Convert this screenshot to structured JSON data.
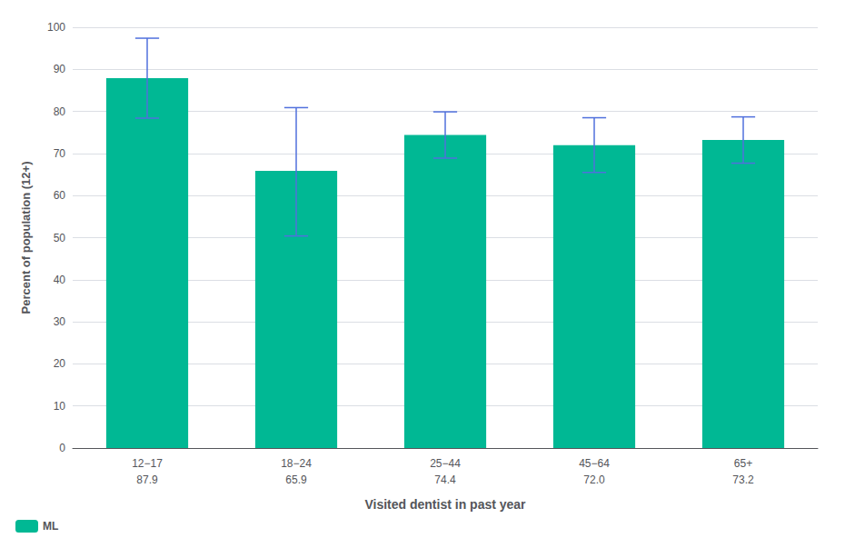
{
  "chart_data": {
    "type": "bar",
    "categories": [
      "12−17",
      "18−24",
      "25−44",
      "45−64",
      "65+"
    ],
    "series": [
      {
        "name": "ML",
        "color": "#00B894",
        "values": [
          87.9,
          65.9,
          74.4,
          72.0,
          73.2
        ],
        "value_labels": [
          "87.9",
          "65.9",
          "74.4",
          "72.0",
          "73.2"
        ],
        "error_lower": [
          9.5,
          15.5,
          5.5,
          6.5,
          5.5
        ],
        "error_upper": [
          9.5,
          15.0,
          5.5,
          6.5,
          5.5
        ]
      }
    ],
    "ylabel": "Percent of population (12+)",
    "xlabel": "Visited dentist in past year",
    "ylim": [
      0,
      100
    ],
    "yticks": [
      0,
      10,
      20,
      30,
      40,
      50,
      60,
      70,
      80,
      90,
      100
    ],
    "grid": true,
    "data_labels": true,
    "legend": "lower left"
  }
}
